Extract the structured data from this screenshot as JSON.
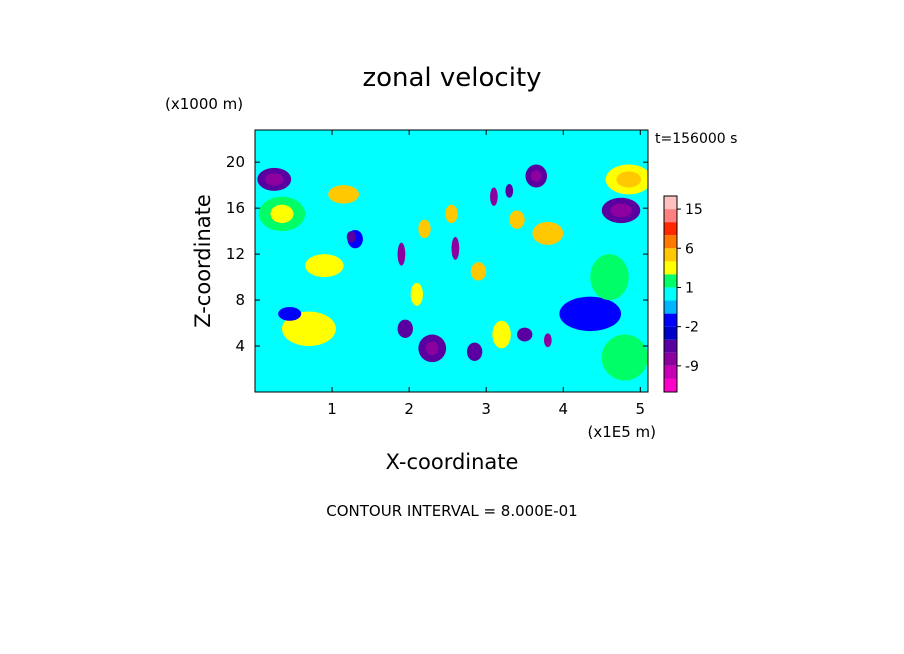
{
  "chart_data": {
    "type": "heatmap",
    "title": "zonal velocity",
    "time_label": "t=156000 s",
    "xlabel": "X-coordinate",
    "ylabel": "Z-coordinate",
    "x_scale_label": "(x1E5 m)",
    "y_scale_label": "(x1000 m)",
    "xlim": [
      0,
      5.1
    ],
    "ylim": [
      0,
      22.8
    ],
    "x_ticks": [
      1,
      2,
      3,
      4,
      5
    ],
    "y_ticks": [
      4,
      8,
      12,
      16,
      20
    ],
    "contour_interval_label": "CONTOUR INTERVAL = 8.000E-01",
    "colorbar": {
      "levels": [
        -15,
        -12,
        -9,
        -6,
        -3,
        -2,
        -1,
        0,
        1,
        2,
        3,
        6,
        9,
        12,
        15,
        18
      ],
      "tick_labels": [
        {
          "value": 15,
          "label": "15"
        },
        {
          "value": 6,
          "label": "6"
        },
        {
          "value": 1,
          "label": "1"
        },
        {
          "value": -2,
          "label": "-2"
        },
        {
          "value": -9,
          "label": "-9"
        }
      ],
      "colors": [
        "#ff00c8",
        "#c800b4",
        "#8c00a0",
        "#5a00a0",
        "#0000c8",
        "#0000ff",
        "#00b4ff",
        "#00ffff",
        "#00ff66",
        "#ffff00",
        "#ffc800",
        "#ff7800",
        "#ff2800",
        "#ff8080",
        "#ffc0c0"
      ]
    },
    "background_value": 0.2,
    "features": [
      {
        "x": 0.25,
        "z": 18.5,
        "rx": 0.22,
        "rz": 1.0,
        "value": -3.5
      },
      {
        "x": 0.25,
        "z": 18.5,
        "rx": 0.12,
        "rz": 0.55,
        "value": -6.5
      },
      {
        "x": 0.35,
        "z": 15.5,
        "rx": 0.3,
        "rz": 1.5,
        "value": 1.5
      },
      {
        "x": 0.35,
        "z": 15.5,
        "rx": 0.15,
        "rz": 0.8,
        "value": 2.5
      },
      {
        "x": 4.85,
        "z": 18.5,
        "rx": 0.3,
        "rz": 1.3,
        "value": 2.5
      },
      {
        "x": 4.85,
        "z": 18.5,
        "rx": 0.16,
        "rz": 0.7,
        "value": 4.5
      },
      {
        "x": 4.75,
        "z": 15.8,
        "rx": 0.25,
        "rz": 1.1,
        "value": -3.5
      },
      {
        "x": 4.75,
        "z": 15.8,
        "rx": 0.14,
        "rz": 0.6,
        "value": -6.5
      },
      {
        "x": 3.65,
        "z": 18.8,
        "rx": 0.14,
        "rz": 1.0,
        "value": -3.5
      },
      {
        "x": 3.65,
        "z": 18.8,
        "rx": 0.07,
        "rz": 0.5,
        "value": -6.5
      },
      {
        "x": 1.15,
        "z": 17.2,
        "rx": 0.2,
        "rz": 0.8,
        "value": 3.0
      },
      {
        "x": 1.3,
        "z": 13.3,
        "rx": 0.1,
        "rz": 0.8,
        "value": -1.5
      },
      {
        "x": 1.25,
        "z": 13.5,
        "rx": 0.06,
        "rz": 0.5,
        "value": -3.5
      },
      {
        "x": 0.9,
        "z": 11.0,
        "rx": 0.25,
        "rz": 1.0,
        "value": 2.5
      },
      {
        "x": 0.7,
        "z": 5.5,
        "rx": 0.35,
        "rz": 1.5,
        "value": 2.5
      },
      {
        "x": 1.9,
        "z": 12.0,
        "rx": 0.05,
        "rz": 1.0,
        "value": -6.5
      },
      {
        "x": 2.6,
        "z": 12.5,
        "rx": 0.05,
        "rz": 1.0,
        "value": -6.5
      },
      {
        "x": 3.1,
        "z": 17.0,
        "rx": 0.05,
        "rz": 0.8,
        "value": -6.5
      },
      {
        "x": 3.3,
        "z": 17.5,
        "rx": 0.05,
        "rz": 0.6,
        "value": -4.5
      },
      {
        "x": 2.3,
        "z": 3.8,
        "rx": 0.18,
        "rz": 1.2,
        "value": -4.5
      },
      {
        "x": 2.3,
        "z": 3.8,
        "rx": 0.08,
        "rz": 0.6,
        "value": -7.5
      },
      {
        "x": 1.95,
        "z": 5.5,
        "rx": 0.1,
        "rz": 0.8,
        "value": -4.5
      },
      {
        "x": 2.85,
        "z": 3.5,
        "rx": 0.1,
        "rz": 0.8,
        "value": -4.5
      },
      {
        "x": 3.5,
        "z": 5.0,
        "rx": 0.1,
        "rz": 0.6,
        "value": -4.5
      },
      {
        "x": 3.8,
        "z": 4.5,
        "rx": 0.05,
        "rz": 0.6,
        "value": -6.5
      },
      {
        "x": 2.2,
        "z": 14.2,
        "rx": 0.08,
        "rz": 0.8,
        "value": 3.0
      },
      {
        "x": 2.55,
        "z": 15.5,
        "rx": 0.08,
        "rz": 0.8,
        "value": 3.0
      },
      {
        "x": 2.9,
        "z": 10.5,
        "rx": 0.1,
        "rz": 0.8,
        "value": 3.0
      },
      {
        "x": 3.4,
        "z": 15.0,
        "rx": 0.1,
        "rz": 0.8,
        "value": 3.0
      },
      {
        "x": 3.8,
        "z": 13.8,
        "rx": 0.2,
        "rz": 1.0,
        "value": 3.0
      },
      {
        "x": 3.2,
        "z": 5.0,
        "rx": 0.12,
        "rz": 1.2,
        "value": 2.5
      },
      {
        "x": 2.1,
        "z": 8.5,
        "rx": 0.08,
        "rz": 1.0,
        "value": 2.5
      },
      {
        "x": 4.35,
        "z": 6.8,
        "rx": 0.4,
        "rz": 1.5,
        "value": -1.5
      },
      {
        "x": 0.45,
        "z": 6.8,
        "rx": 0.15,
        "rz": 0.6,
        "value": -1.5
      },
      {
        "x": 4.6,
        "z": 10.0,
        "rx": 0.25,
        "rz": 2.0,
        "value": 1.5
      },
      {
        "x": 4.8,
        "z": 3.0,
        "rx": 0.3,
        "rz": 2.0,
        "value": 1.5
      }
    ]
  }
}
